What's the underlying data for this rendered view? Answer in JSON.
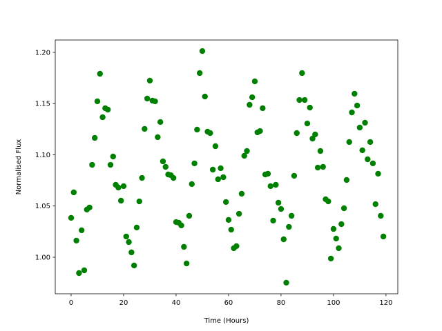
{
  "chart_data": {
    "type": "scatter",
    "xlabel": "Time (Hours)",
    "ylabel": "Normalised Flux",
    "color": "#008000",
    "x": [
      0,
      1,
      2,
      3,
      4,
      5,
      6,
      7,
      8,
      9,
      10,
      11,
      12,
      13,
      14,
      15,
      16,
      17,
      18,
      19,
      20,
      21,
      22,
      23,
      24,
      25,
      26,
      27,
      28,
      29,
      30,
      31,
      32,
      33,
      34,
      35,
      36,
      37,
      38,
      39,
      40,
      41,
      42,
      43,
      44,
      45,
      46,
      47,
      48,
      49,
      50,
      51,
      52,
      53,
      54,
      55,
      56,
      57,
      58,
      59,
      60,
      61,
      62,
      63,
      64,
      65,
      66,
      67,
      68,
      69,
      70,
      71,
      72,
      73,
      74,
      75,
      76,
      77,
      78,
      79,
      80,
      81,
      82,
      83,
      84,
      85,
      86,
      87,
      88,
      89,
      90,
      91,
      92,
      93,
      94,
      95,
      96,
      97,
      98,
      99,
      100,
      101,
      102,
      103,
      104,
      105,
      106,
      107,
      108,
      109,
      110,
      111,
      112,
      113,
      114,
      115,
      116,
      117,
      118,
      119
    ],
    "values": [
      1.0384,
      1.0633,
      1.0162,
      0.9845,
      1.0263,
      0.9872,
      1.0465,
      1.0485,
      1.0902,
      1.1165,
      1.1522,
      1.1791,
      1.1367,
      1.1455,
      1.1441,
      1.0902,
      1.0983,
      1.0707,
      1.068,
      1.0552,
      1.0694,
      1.0202,
      1.0148,
      1.0047,
      0.9919,
      1.029,
      1.0545,
      1.0774,
      1.1253,
      1.1549,
      1.1724,
      1.1529,
      1.1522,
      1.1172,
      1.132,
      1.0936,
      1.0882,
      1.0808,
      1.0801,
      1.0774,
      1.0343,
      1.0337,
      1.031,
      1.0101,
      0.9939,
      1.0404,
      1.0714,
      1.0916,
      1.1246,
      1.1798,
      1.2013,
      1.1569,
      1.1226,
      1.1212,
      1.0855,
      1.1084,
      1.0761,
      1.0869,
      1.0781,
      1.0539,
      1.0364,
      1.0269,
      1.0088,
      1.0108,
      1.0424,
      1.062,
      1.099,
      1.1037,
      1.1488,
      1.1562,
      1.1717,
      1.1219,
      1.1232,
      1.1455,
      1.0808,
      1.0815,
      1.0694,
      1.0357,
      1.0707,
      1.0532,
      1.0471,
      1.0175,
      0.9751,
      1.0296,
      1.0404,
      1.0795,
      1.1212,
      1.1535,
      1.1798,
      1.1535,
      1.1306,
      1.1461,
      1.1158,
      1.1199,
      1.0875,
      1.1037,
      1.0882,
      1.0566,
      1.0545,
      0.9987,
      1.0276,
      1.0182,
      1.0088,
      1.0323,
      1.0478,
      1.0754,
      1.1125,
      1.1414,
      1.1596,
      1.1481,
      1.1266,
      1.1044,
      1.1313,
      1.0956,
      1.1125,
      1.0916,
      1.0518,
      1.0815,
      1.0404,
      1.0202
    ],
    "xlim": [
      -6.05,
      124.5
    ],
    "ylim": [
      0.9643,
      1.2121
    ],
    "xticks": [
      0,
      20,
      40,
      60,
      80,
      100,
      120
    ],
    "yticks": [
      {
        "value": 1,
        "label": "1.00"
      },
      {
        "value": 1.05,
        "label": "1.05"
      },
      {
        "value": 1.1,
        "label": "1.10"
      },
      {
        "value": 1.15,
        "label": "1.15"
      },
      {
        "value": 1.2,
        "label": "1.20"
      }
    ]
  }
}
